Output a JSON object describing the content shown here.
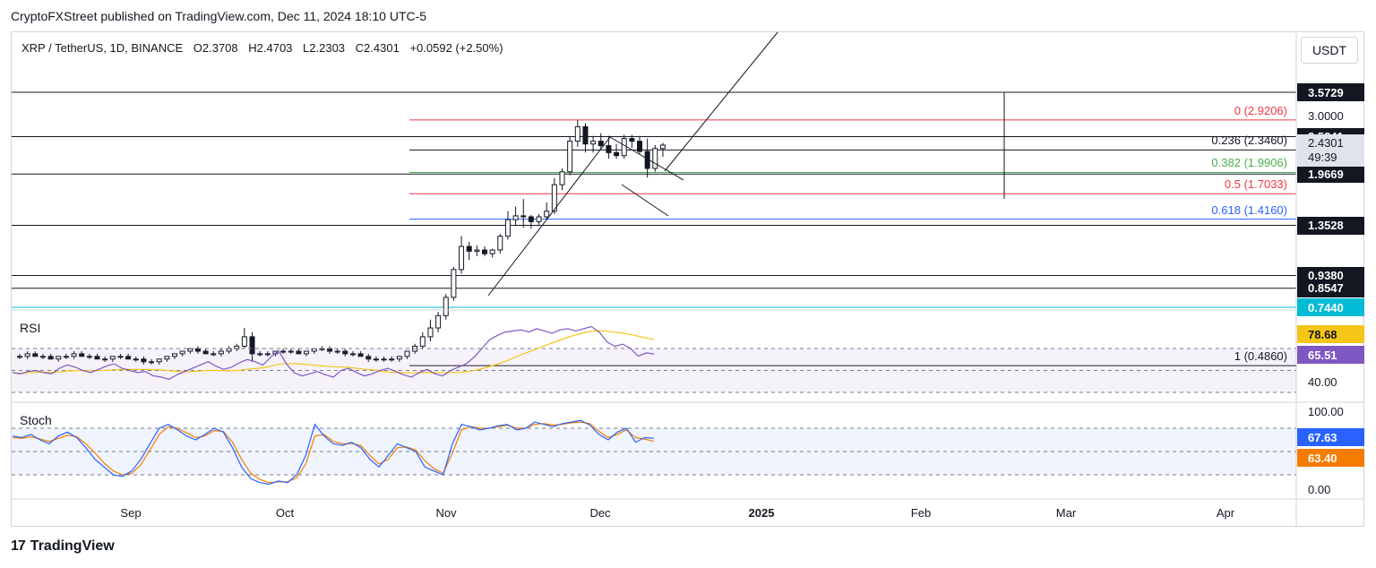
{
  "publisher": "CryptoFXStreet published on TradingView.com, Dec 11, 2024 18:10 UTC-5",
  "symbol": {
    "name": "XRP / TetherUS, 1D, BINANCE",
    "open": "O2.3708",
    "high": "H2.4703",
    "low": "L2.2303",
    "close": "C2.4301",
    "change": "+0.0592 (+2.50%)"
  },
  "currency_button": "USDT",
  "brand": {
    "logo": "17",
    "name": "TradingView"
  },
  "colors": {
    "up": "#131722",
    "fib_red": "#f23645",
    "fib_green": "#4caf50",
    "fib_blue": "#2962ff",
    "rsi": "#7e57c2",
    "rsi_ma": "#f5c518",
    "stoch_k": "#2962ff",
    "stoch_d": "#f57c00",
    "cyan": "#00bcd4"
  },
  "price_axis": {
    "badges": [
      {
        "value": "3.5729",
        "price": 3.5729,
        "bg": "#131722"
      },
      {
        "value": "2.5841",
        "price": 2.5841,
        "bg": "#131722"
      },
      {
        "value": "1.9669",
        "price": 1.9669,
        "bg": "#131722"
      },
      {
        "value": "1.3528",
        "price": 1.3528,
        "bg": "#131722"
      },
      {
        "value": "0.9380",
        "price": 0.938,
        "bg": "#131722"
      },
      {
        "value": "0.8547",
        "price": 0.8547,
        "bg": "#131722"
      },
      {
        "value": "0.7440",
        "price": 0.744,
        "bg": "#00bcd4"
      }
    ],
    "plain": [
      {
        "value": "3.0000",
        "price": 3.0
      }
    ],
    "last_price": "2.4301",
    "countdown": "49:39"
  },
  "fib_levels": [
    {
      "label": "0 (2.9206)",
      "price": 2.9206,
      "color": "#f23645"
    },
    {
      "label": "0.236 (2.3460)",
      "price": 2.346,
      "color": "#131722"
    },
    {
      "label": "0.382 (1.9906)",
      "price": 1.9906,
      "color": "#4caf50"
    },
    {
      "label": "0.5 (1.7033)",
      "price": 1.7033,
      "color": "#f23645"
    },
    {
      "label": "0.618 (1.4160)",
      "price": 1.416,
      "color": "#2962ff"
    },
    {
      "label": "1 (0.4860)",
      "price": 0.486,
      "color": "#131722"
    }
  ],
  "rsi": {
    "title": "RSI",
    "value_rsi": "65.51",
    "value_ma": "78.68",
    "axis": "40.00",
    "values": [
      48,
      47,
      49,
      50,
      48,
      47,
      52,
      55,
      53,
      50,
      48,
      51,
      54,
      56,
      52,
      50,
      48,
      49,
      45,
      44,
      42,
      46,
      49,
      52,
      55,
      58,
      54,
      51,
      53,
      57,
      60,
      58,
      55,
      62,
      68,
      56,
      48,
      45,
      47,
      49,
      46,
      44,
      50,
      52,
      48,
      45,
      47,
      50,
      52,
      49,
      46,
      44,
      48,
      51,
      47,
      45,
      50,
      53,
      56,
      62,
      70,
      78,
      82,
      85,
      86,
      87,
      85,
      88,
      86,
      84,
      87,
      88,
      86,
      88,
      90,
      85,
      76,
      72,
      74,
      70,
      63,
      66,
      65
    ]
  },
  "stoch": {
    "title": "Stoch",
    "value_k": "67.63",
    "value_d": "63.40",
    "axis_top": "100.00",
    "axis_bottom": "0.00",
    "k_values": [
      70,
      68,
      72,
      65,
      60,
      70,
      75,
      68,
      55,
      40,
      30,
      20,
      18,
      25,
      40,
      60,
      80,
      85,
      78,
      70,
      65,
      72,
      80,
      75,
      55,
      30,
      15,
      10,
      8,
      12,
      10,
      20,
      45,
      85,
      70,
      60,
      58,
      62,
      55,
      40,
      30,
      45,
      60,
      55,
      50,
      30,
      25,
      20,
      60,
      85,
      82,
      78,
      80,
      83,
      85,
      78,
      80,
      88,
      85,
      82,
      86,
      88,
      90,
      84,
      72,
      65,
      75,
      80,
      62,
      68,
      67
    ],
    "d_values": [
      68,
      67,
      69,
      66,
      63,
      67,
      71,
      69,
      60,
      48,
      35,
      25,
      20,
      22,
      33,
      52,
      72,
      82,
      80,
      74,
      68,
      70,
      77,
      76,
      62,
      40,
      22,
      14,
      10,
      11,
      11,
      16,
      34,
      70,
      72,
      63,
      60,
      60,
      58,
      45,
      34,
      40,
      55,
      56,
      52,
      38,
      28,
      22,
      48,
      78,
      82,
      80,
      80,
      82,
      84,
      80,
      80,
      85,
      86,
      84,
      85,
      87,
      88,
      86,
      76,
      68,
      72,
      78,
      68,
      66,
      63
    ]
  },
  "candles": [
    {
      "o": 0.52,
      "h": 0.53,
      "l": 0.51,
      "c": 0.52
    },
    {
      "o": 0.52,
      "h": 0.54,
      "l": 0.51,
      "c": 0.53
    },
    {
      "o": 0.53,
      "h": 0.54,
      "l": 0.52,
      "c": 0.52
    },
    {
      "o": 0.52,
      "h": 0.53,
      "l": 0.51,
      "c": 0.52
    },
    {
      "o": 0.52,
      "h": 0.53,
      "l": 0.51,
      "c": 0.51
    },
    {
      "o": 0.51,
      "h": 0.52,
      "l": 0.5,
      "c": 0.52
    },
    {
      "o": 0.52,
      "h": 0.53,
      "l": 0.51,
      "c": 0.52
    },
    {
      "o": 0.52,
      "h": 0.54,
      "l": 0.51,
      "c": 0.53
    },
    {
      "o": 0.53,
      "h": 0.54,
      "l": 0.52,
      "c": 0.52
    },
    {
      "o": 0.52,
      "h": 0.53,
      "l": 0.51,
      "c": 0.52
    },
    {
      "o": 0.52,
      "h": 0.53,
      "l": 0.51,
      "c": 0.51
    },
    {
      "o": 0.51,
      "h": 0.52,
      "l": 0.5,
      "c": 0.51
    },
    {
      "o": 0.51,
      "h": 0.52,
      "l": 0.5,
      "c": 0.52
    },
    {
      "o": 0.52,
      "h": 0.53,
      "l": 0.51,
      "c": 0.52
    },
    {
      "o": 0.52,
      "h": 0.53,
      "l": 0.51,
      "c": 0.51
    },
    {
      "o": 0.51,
      "h": 0.52,
      "l": 0.5,
      "c": 0.51
    },
    {
      "o": 0.51,
      "h": 0.52,
      "l": 0.49,
      "c": 0.5
    },
    {
      "o": 0.5,
      "h": 0.51,
      "l": 0.49,
      "c": 0.5
    },
    {
      "o": 0.5,
      "h": 0.51,
      "l": 0.49,
      "c": 0.51
    },
    {
      "o": 0.51,
      "h": 0.52,
      "l": 0.5,
      "c": 0.52
    },
    {
      "o": 0.52,
      "h": 0.53,
      "l": 0.51,
      "c": 0.53
    },
    {
      "o": 0.53,
      "h": 0.54,
      "l": 0.52,
      "c": 0.54
    },
    {
      "o": 0.54,
      "h": 0.55,
      "l": 0.53,
      "c": 0.55
    },
    {
      "o": 0.55,
      "h": 0.56,
      "l": 0.53,
      "c": 0.54
    },
    {
      "o": 0.54,
      "h": 0.55,
      "l": 0.53,
      "c": 0.53
    },
    {
      "o": 0.53,
      "h": 0.54,
      "l": 0.52,
      "c": 0.53
    },
    {
      "o": 0.53,
      "h": 0.55,
      "l": 0.52,
      "c": 0.54
    },
    {
      "o": 0.54,
      "h": 0.56,
      "l": 0.53,
      "c": 0.55
    },
    {
      "o": 0.55,
      "h": 0.57,
      "l": 0.54,
      "c": 0.56
    },
    {
      "o": 0.56,
      "h": 0.64,
      "l": 0.55,
      "c": 0.6
    },
    {
      "o": 0.6,
      "h": 0.62,
      "l": 0.5,
      "c": 0.53
    },
    {
      "o": 0.53,
      "h": 0.54,
      "l": 0.52,
      "c": 0.53
    },
    {
      "o": 0.53,
      "h": 0.54,
      "l": 0.52,
      "c": 0.53
    },
    {
      "o": 0.53,
      "h": 0.54,
      "l": 0.52,
      "c": 0.54
    },
    {
      "o": 0.54,
      "h": 0.55,
      "l": 0.53,
      "c": 0.54
    },
    {
      "o": 0.54,
      "h": 0.55,
      "l": 0.53,
      "c": 0.54
    },
    {
      "o": 0.54,
      "h": 0.55,
      "l": 0.53,
      "c": 0.53
    },
    {
      "o": 0.53,
      "h": 0.54,
      "l": 0.52,
      "c": 0.54
    },
    {
      "o": 0.54,
      "h": 0.55,
      "l": 0.53,
      "c": 0.55
    },
    {
      "o": 0.55,
      "h": 0.56,
      "l": 0.54,
      "c": 0.55
    },
    {
      "o": 0.55,
      "h": 0.56,
      "l": 0.53,
      "c": 0.54
    },
    {
      "o": 0.54,
      "h": 0.55,
      "l": 0.53,
      "c": 0.54
    },
    {
      "o": 0.54,
      "h": 0.55,
      "l": 0.52,
      "c": 0.53
    },
    {
      "o": 0.53,
      "h": 0.54,
      "l": 0.52,
      "c": 0.53
    },
    {
      "o": 0.53,
      "h": 0.54,
      "l": 0.52,
      "c": 0.52
    },
    {
      "o": 0.52,
      "h": 0.53,
      "l": 0.5,
      "c": 0.51
    },
    {
      "o": 0.51,
      "h": 0.52,
      "l": 0.5,
      "c": 0.51
    },
    {
      "o": 0.51,
      "h": 0.52,
      "l": 0.5,
      "c": 0.51
    },
    {
      "o": 0.51,
      "h": 0.52,
      "l": 0.5,
      "c": 0.51
    },
    {
      "o": 0.51,
      "h": 0.52,
      "l": 0.5,
      "c": 0.52
    },
    {
      "o": 0.52,
      "h": 0.54,
      "l": 0.51,
      "c": 0.54
    },
    {
      "o": 0.54,
      "h": 0.57,
      "l": 0.53,
      "c": 0.56
    },
    {
      "o": 0.56,
      "h": 0.62,
      "l": 0.55,
      "c": 0.6
    },
    {
      "o": 0.6,
      "h": 0.68,
      "l": 0.58,
      "c": 0.64
    },
    {
      "o": 0.64,
      "h": 0.72,
      "l": 0.62,
      "c": 0.7
    },
    {
      "o": 0.7,
      "h": 0.82,
      "l": 0.68,
      "c": 0.8
    },
    {
      "o": 0.8,
      "h": 1.0,
      "l": 0.78,
      "c": 0.98
    },
    {
      "o": 0.98,
      "h": 1.25,
      "l": 0.95,
      "c": 1.16
    },
    {
      "o": 1.16,
      "h": 1.2,
      "l": 1.05,
      "c": 1.12
    },
    {
      "o": 1.12,
      "h": 1.17,
      "l": 1.08,
      "c": 1.13
    },
    {
      "o": 1.13,
      "h": 1.16,
      "l": 1.08,
      "c": 1.1
    },
    {
      "o": 1.1,
      "h": 1.14,
      "l": 1.07,
      "c": 1.13
    },
    {
      "o": 1.13,
      "h": 1.27,
      "l": 1.1,
      "c": 1.25
    },
    {
      "o": 1.25,
      "h": 1.5,
      "l": 1.22,
      "c": 1.41
    },
    {
      "o": 1.41,
      "h": 1.55,
      "l": 1.35,
      "c": 1.45
    },
    {
      "o": 1.45,
      "h": 1.64,
      "l": 1.33,
      "c": 1.44
    },
    {
      "o": 1.44,
      "h": 1.46,
      "l": 1.32,
      "c": 1.39
    },
    {
      "o": 1.39,
      "h": 1.47,
      "l": 1.36,
      "c": 1.44
    },
    {
      "o": 1.44,
      "h": 1.6,
      "l": 1.41,
      "c": 1.5
    },
    {
      "o": 1.5,
      "h": 1.91,
      "l": 1.47,
      "c": 1.82
    },
    {
      "o": 1.82,
      "h": 2.05,
      "l": 1.75,
      "c": 2.0
    },
    {
      "o": 2.0,
      "h": 2.6,
      "l": 1.95,
      "c": 2.5
    },
    {
      "o": 2.5,
      "h": 2.92,
      "l": 2.4,
      "c": 2.78
    },
    {
      "o": 2.78,
      "h": 2.85,
      "l": 2.3,
      "c": 2.45
    },
    {
      "o": 2.45,
      "h": 2.6,
      "l": 2.3,
      "c": 2.5
    },
    {
      "o": 2.5,
      "h": 2.65,
      "l": 2.35,
      "c": 2.42
    },
    {
      "o": 2.42,
      "h": 2.6,
      "l": 2.2,
      "c": 2.3
    },
    {
      "o": 2.3,
      "h": 2.45,
      "l": 2.2,
      "c": 2.25
    },
    {
      "o": 2.25,
      "h": 2.62,
      "l": 2.2,
      "c": 2.55
    },
    {
      "o": 2.55,
      "h": 2.62,
      "l": 2.38,
      "c": 2.5
    },
    {
      "o": 2.5,
      "h": 2.6,
      "l": 2.28,
      "c": 2.32
    },
    {
      "o": 2.32,
      "h": 2.55,
      "l": 1.92,
      "c": 2.05
    },
    {
      "o": 2.05,
      "h": 2.43,
      "l": 2.0,
      "c": 2.37
    },
    {
      "o": 2.37,
      "h": 2.47,
      "l": 2.23,
      "c": 2.43
    }
  ],
  "x_axis": [
    {
      "label": "Sep",
      "bold": false
    },
    {
      "label": "Oct",
      "bold": false
    },
    {
      "label": "Nov",
      "bold": false
    },
    {
      "label": "Dec",
      "bold": false
    },
    {
      "label": "2025",
      "bold": true
    },
    {
      "label": "Feb",
      "bold": false
    },
    {
      "label": "Mar",
      "bold": false
    },
    {
      "label": "Apr",
      "bold": false
    }
  ]
}
